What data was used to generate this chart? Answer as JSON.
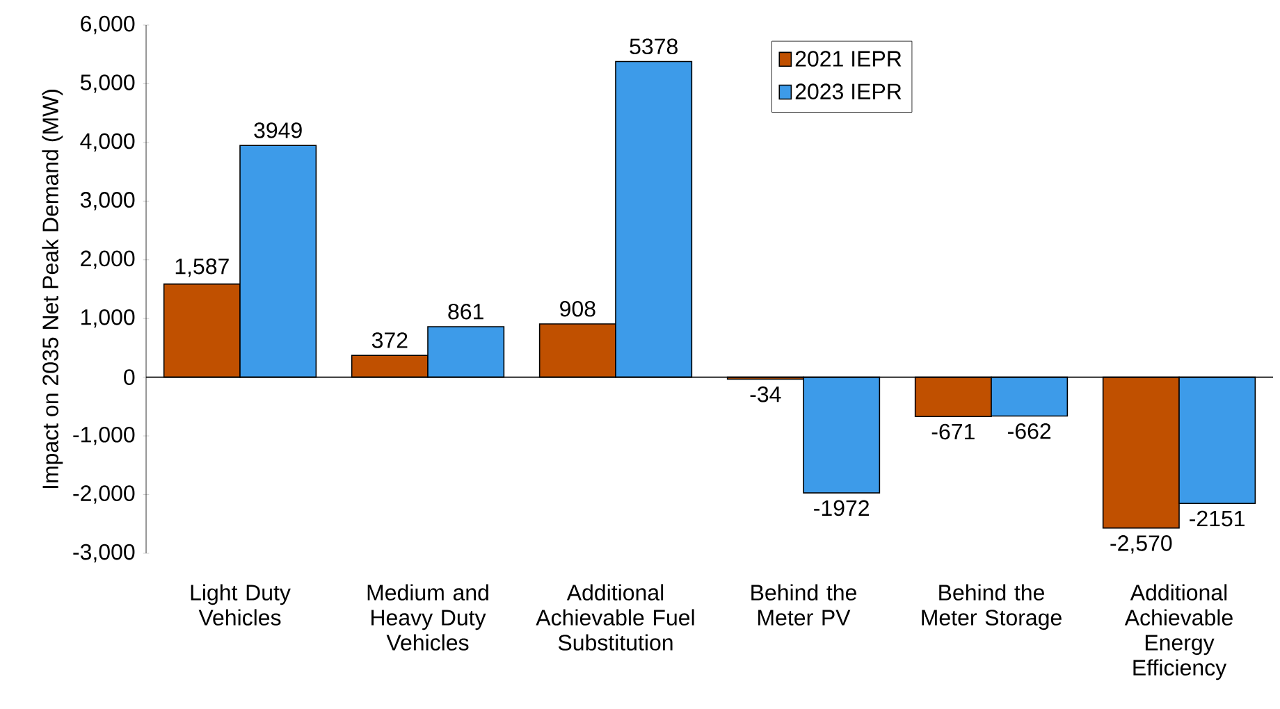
{
  "chart_data": {
    "type": "bar",
    "ylabel": "Impact on 2035 Net Peak Demand (MW)",
    "categories": [
      "Light Duty Vehicles",
      "Medium and Heavy Duty Vehicles",
      "Additional Achievable Fuel Substitution",
      "Behind the Meter PV",
      "Behind the Meter Storage",
      "Additional Achievable Energy Efficiency"
    ],
    "series": [
      {
        "name": "2021 IEPR",
        "color": "#c05000",
        "values": [
          1587,
          372,
          908,
          -34,
          -671,
          -2570
        ],
        "value_labels": [
          "1,587",
          "372",
          "908",
          "-34",
          "-671",
          "-2,570"
        ]
      },
      {
        "name": "2023 IEPR",
        "color": "#3d9be9",
        "values": [
          3949,
          861,
          5378,
          -1972,
          -662,
          -2151
        ],
        "value_labels": [
          "3949",
          "861",
          "5378",
          "-1972",
          "-662",
          "-2151"
        ]
      }
    ],
    "ylim": [
      -3000,
      6000
    ],
    "yticks": [
      {
        "value": -3000,
        "label": "-3,000"
      },
      {
        "value": -2000,
        "label": "-2,000"
      },
      {
        "value": -1000,
        "label": "-1,000"
      },
      0,
      {
        "value": 1000,
        "label": "1,000"
      },
      {
        "value": 2000,
        "label": "2,000"
      },
      {
        "value": 3000,
        "label": "3,000"
      },
      {
        "value": 4000,
        "label": "4,000"
      },
      {
        "value": 5000,
        "label": "5,000"
      },
      {
        "value": 6000,
        "label": "6,000"
      }
    ],
    "legend": "top right"
  }
}
